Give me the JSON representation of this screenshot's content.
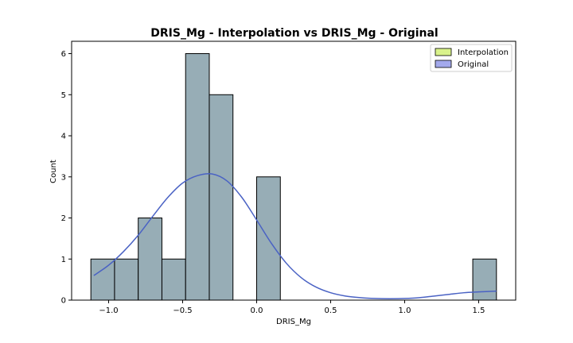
{
  "chart_data": {
    "type": "bar",
    "title": "DRIS_Mg - Interpolation vs DRIS_Mg - Original",
    "xlabel": "DRIS_Mg",
    "ylabel": "Count",
    "xlim": [
      -1.25,
      1.75
    ],
    "ylim": [
      0,
      6.3
    ],
    "xticks": [
      -1.0,
      -0.5,
      0.0,
      0.5,
      1.0,
      1.5
    ],
    "xtick_labels": [
      "−1.0",
      "−0.5",
      "0.0",
      "0.5",
      "1.0",
      "1.5"
    ],
    "yticks": [
      0,
      1,
      2,
      3,
      4,
      5,
      6
    ],
    "ytick_labels": [
      "0",
      "1",
      "2",
      "3",
      "4",
      "5",
      "6"
    ],
    "bin_width": 0.16,
    "bins": [
      {
        "start": -1.12,
        "end": -0.96,
        "count": 1
      },
      {
        "start": -0.96,
        "end": -0.8,
        "count": 1
      },
      {
        "start": -0.8,
        "end": -0.64,
        "count": 2
      },
      {
        "start": -0.64,
        "end": -0.48,
        "count": 1
      },
      {
        "start": -0.48,
        "end": -0.32,
        "count": 6
      },
      {
        "start": -0.32,
        "end": -0.16,
        "count": 5
      },
      {
        "start": -0.16,
        "end": 0.0,
        "count": 0
      },
      {
        "start": 0.0,
        "end": 0.16,
        "count": 3
      },
      {
        "start": 1.46,
        "end": 1.62,
        "count": 1
      }
    ],
    "kde": {
      "x": [
        -1.1,
        -1.0,
        -0.9,
        -0.8,
        -0.7,
        -0.6,
        -0.5,
        -0.4,
        -0.3,
        -0.2,
        -0.1,
        0.0,
        0.1,
        0.2,
        0.3,
        0.4,
        0.5,
        0.6,
        0.7,
        0.8,
        0.9,
        1.0,
        1.1,
        1.2,
        1.3,
        1.4,
        1.5,
        1.62
      ],
      "y": [
        0.6,
        0.85,
        1.18,
        1.58,
        2.05,
        2.5,
        2.85,
        3.03,
        3.07,
        2.9,
        2.5,
        1.95,
        1.38,
        0.9,
        0.55,
        0.32,
        0.18,
        0.1,
        0.06,
        0.04,
        0.035,
        0.04,
        0.06,
        0.1,
        0.14,
        0.18,
        0.2,
        0.22
      ]
    },
    "series": [
      {
        "name": "Interpolation",
        "color": "#d9f28a"
      },
      {
        "name": "Original",
        "color": "#a3a9ec"
      }
    ],
    "bar_fill": "#97adb6",
    "kde_color": "#4a62c4",
    "legend_position": "top-right",
    "grid": false
  }
}
